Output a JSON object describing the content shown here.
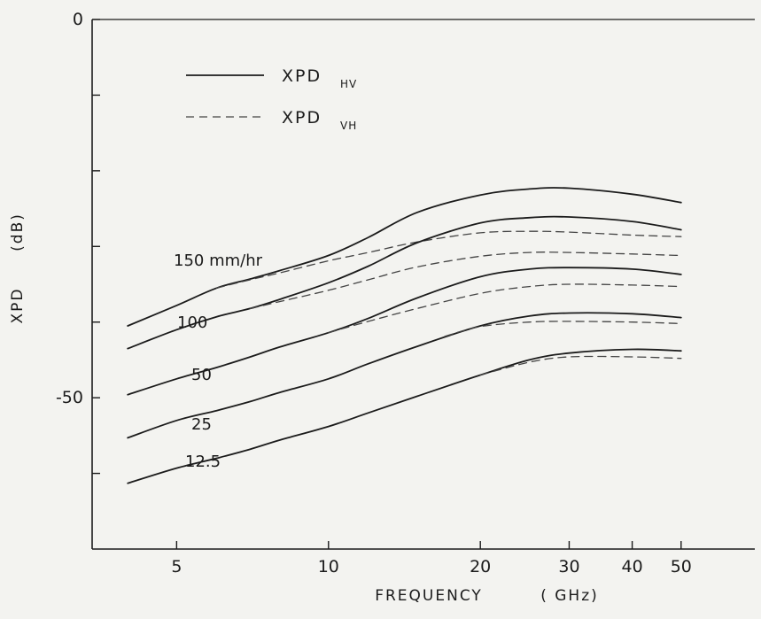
{
  "chart_data": {
    "type": "line",
    "xlabel": "FREQUENCY",
    "xunit": "( GHz)",
    "ylabel": "XPD",
    "yunit": "(dB)",
    "x_scale": "log",
    "xlim": [
      3.4,
      70
    ],
    "ylim": [
      -70,
      0
    ],
    "x_ticks": [
      5,
      10,
      20,
      30,
      40,
      50
    ],
    "y_ticks": [
      0,
      -10,
      -20,
      -30,
      -40,
      -50,
      -60
    ],
    "y_tick_labels": [
      {
        "value": 0,
        "label": "0"
      },
      {
        "value": -50,
        "label": "-50"
      }
    ],
    "grid": false,
    "legend": {
      "position": "top-left",
      "entries": [
        {
          "main": "XPD",
          "sub": "HV",
          "style": "solid"
        },
        {
          "main": "XPD",
          "sub": "VH",
          "style": "dashed"
        }
      ]
    },
    "series": [
      {
        "rate": "150 mm/hr",
        "label": "150 mm/hr",
        "type": "XPD_HV",
        "style": "solid",
        "x": [
          4,
          5,
          6,
          7,
          8,
          10,
          12,
          15,
          20,
          25,
          30,
          40,
          50
        ],
        "y": [
          -40.5,
          -37.8,
          -35.5,
          -34.3,
          -33.2,
          -31.2,
          -28.8,
          -25.5,
          -23.2,
          -22.4,
          -22.3,
          -23.1,
          -24.2
        ]
      },
      {
        "rate": "150 mm/hr",
        "type": "XPD_VH",
        "style": "dashed",
        "x": [
          6,
          7,
          8,
          10,
          12,
          15,
          20,
          25,
          30,
          40,
          50
        ],
        "y": [
          -35.5,
          -34.4,
          -33.5,
          -31.9,
          -30.8,
          -29.4,
          -28.2,
          -28.0,
          -28.1,
          -28.5,
          -28.7
        ]
      },
      {
        "rate": "100 mm/hr",
        "label": "100",
        "type": "XPD_HV",
        "style": "solid",
        "x": [
          4,
          5,
          6,
          7,
          8,
          10,
          12,
          15,
          20,
          25,
          30,
          40,
          50
        ],
        "y": [
          -43.5,
          -41.0,
          -39.3,
          -38.2,
          -37.0,
          -34.8,
          -32.6,
          -29.5,
          -26.9,
          -26.2,
          -26.1,
          -26.7,
          -27.8
        ]
      },
      {
        "rate": "100 mm/hr",
        "type": "XPD_VH",
        "style": "dashed",
        "x": [
          7,
          8,
          10,
          12,
          15,
          20,
          25,
          30,
          40,
          50
        ],
        "y": [
          -38.2,
          -37.3,
          -35.8,
          -34.4,
          -32.7,
          -31.3,
          -30.8,
          -30.8,
          -31.0,
          -31.2
        ]
      },
      {
        "rate": "50 mm/hr",
        "label": "50",
        "type": "XPD_HV",
        "style": "solid",
        "x": [
          4,
          5,
          6,
          7,
          8,
          10,
          12,
          15,
          20,
          25,
          30,
          40,
          50
        ],
        "y": [
          -49.6,
          -47.5,
          -46.0,
          -44.6,
          -43.3,
          -41.4,
          -39.5,
          -36.8,
          -34.0,
          -33.0,
          -32.8,
          -33.0,
          -33.7
        ]
      },
      {
        "rate": "50 mm/hr",
        "type": "XPD_VH",
        "style": "dashed",
        "x": [
          10,
          12,
          15,
          20,
          25,
          30,
          40,
          50
        ],
        "y": [
          -41.4,
          -39.9,
          -38.2,
          -36.2,
          -35.3,
          -35.0,
          -35.1,
          -35.3
        ]
      },
      {
        "rate": "25 mm/hr",
        "label": "25",
        "type": "XPD_HV",
        "style": "solid",
        "x": [
          4,
          5,
          6,
          7,
          8,
          10,
          12,
          15,
          20,
          25,
          30,
          40,
          50
        ],
        "y": [
          -55.3,
          -53.0,
          -51.7,
          -50.5,
          -49.3,
          -47.5,
          -45.5,
          -43.2,
          -40.5,
          -39.2,
          -38.8,
          -38.9,
          -39.4
        ]
      },
      {
        "rate": "25 mm/hr",
        "type": "XPD_VH",
        "style": "dashed",
        "x": [
          17,
          20,
          25,
          30,
          40,
          50
        ],
        "y": [
          -41.9,
          -40.6,
          -40.0,
          -39.9,
          -40.0,
          -40.2
        ]
      },
      {
        "rate": "12.5 mm/hr",
        "label": "12.5",
        "type": "XPD_HV",
        "style": "solid",
        "x": [
          4,
          5,
          6,
          7,
          8,
          10,
          12,
          15,
          20,
          25,
          30,
          40,
          50
        ],
        "y": [
          -61.3,
          -59.3,
          -58.0,
          -56.8,
          -55.6,
          -53.8,
          -52.0,
          -49.8,
          -47.0,
          -45.0,
          -44.1,
          -43.6,
          -43.8
        ]
      },
      {
        "rate": "12.5 mm/hr",
        "type": "XPD_VH",
        "style": "dashed",
        "x": [
          20,
          25,
          30,
          40,
          50
        ],
        "y": [
          -47.0,
          -45.3,
          -44.6,
          -44.6,
          -44.8
        ]
      }
    ]
  },
  "colors": {
    "background": "#f3f3f0",
    "ink": "#1b1b1b",
    "dashed_ink": "#444444"
  }
}
